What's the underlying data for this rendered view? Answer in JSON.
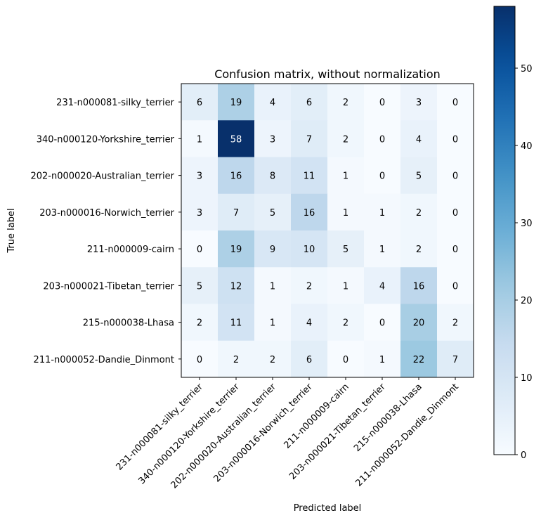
{
  "chart_data": {
    "type": "heatmap",
    "title": "Confusion matrix, without normalization",
    "xlabel": "Predicted label",
    "ylabel": "True label",
    "row_labels": [
      "231-n000081-silky_terrier",
      "340-n000120-Yorkshire_terrier",
      "202-n000020-Australian_terrier",
      "203-n000016-Norwich_terrier",
      "211-n000009-cairn",
      "203-n000021-Tibetan_terrier",
      "215-n000038-Lhasa",
      "211-n000052-Dandie_Dinmont"
    ],
    "col_labels": [
      "231-n000081-silky_terrier",
      "340-n000120-Yorkshire_terrier",
      "202-n000020-Australian_terrier",
      "203-n000016-Norwich_terrier",
      "211-n000009-cairn",
      "203-n000021-Tibetan_terrier",
      "215-n000038-Lhasa",
      "211-n000052-Dandie_Dinmont"
    ],
    "values": [
      [
        6,
        19,
        4,
        6,
        2,
        0,
        3,
        0
      ],
      [
        1,
        58,
        3,
        7,
        2,
        0,
        4,
        0
      ],
      [
        3,
        16,
        8,
        11,
        1,
        0,
        5,
        0
      ],
      [
        3,
        7,
        5,
        16,
        1,
        1,
        2,
        0
      ],
      [
        0,
        19,
        9,
        10,
        5,
        1,
        2,
        0
      ],
      [
        5,
        12,
        1,
        2,
        1,
        4,
        16,
        0
      ],
      [
        2,
        11,
        1,
        4,
        2,
        0,
        20,
        2
      ],
      [
        0,
        2,
        2,
        6,
        0,
        1,
        22,
        7
      ]
    ],
    "colormap": "Blues",
    "colorbar": {
      "min": 0,
      "max": 58,
      "ticks": [
        0,
        10,
        20,
        30,
        40,
        50
      ]
    },
    "grid": false
  }
}
